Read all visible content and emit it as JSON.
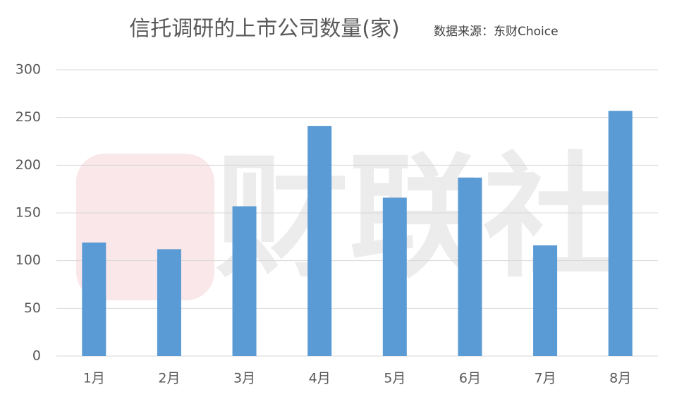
{
  "chart_data": {
    "type": "bar",
    "title": "信托调研的上市公司数量(家)",
    "subtitle": "数据来源：东财Choice",
    "watermark": "财联社",
    "categories": [
      "1月",
      "2月",
      "3月",
      "4月",
      "5月",
      "6月",
      "7月",
      "8月"
    ],
    "values": [
      119,
      112,
      157,
      241,
      166,
      187,
      116,
      257
    ],
    "color": "#5b9bd5",
    "ylim": [
      0,
      300
    ],
    "yticks": [
      0,
      50,
      100,
      150,
      200,
      250,
      300
    ],
    "grid": true
  }
}
